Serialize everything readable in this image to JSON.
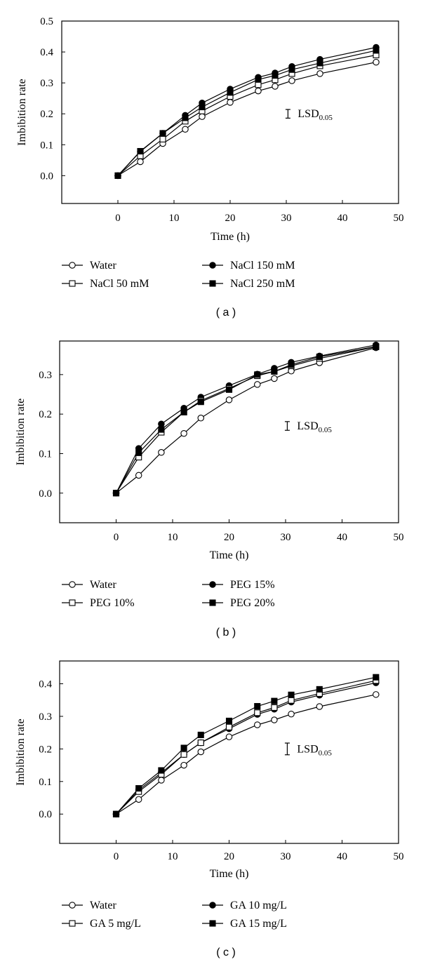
{
  "chart_data": [
    {
      "type": "line",
      "panel_label": "( a )",
      "xlabel": "Time (h)",
      "ylabel": "Imbibition rate",
      "xlim": [
        -10,
        50
      ],
      "ylim": [
        -0.09,
        0.5
      ],
      "xticks": [
        "0",
        "10",
        "20",
        "30",
        "40",
        "50"
      ],
      "yticks": [
        "0.0",
        "0.1",
        "0.2",
        "0.3",
        "0.4",
        "0.5"
      ],
      "x": [
        0,
        4,
        8,
        12,
        15,
        20,
        25,
        28,
        31,
        36,
        46
      ],
      "lsd": {
        "label": "LSD",
        "subscript": "0.05",
        "x": 30.3,
        "y": 0.2,
        "half_range": 0.014
      },
      "series": [
        {
          "name": "Water",
          "marker": "circle-open",
          "values": [
            0,
            0.045,
            0.104,
            0.15,
            0.191,
            0.237,
            0.274,
            0.289,
            0.307,
            0.33,
            0.367
          ]
        },
        {
          "name": "NaCl 150 mM",
          "marker": "circle-filled",
          "values": [
            0,
            0.078,
            0.137,
            0.195,
            0.235,
            0.28,
            0.318,
            0.332,
            0.353,
            0.376,
            0.415
          ]
        },
        {
          "name": "NaCl 50 mM",
          "marker": "square-open",
          "values": [
            0,
            0.064,
            0.118,
            0.176,
            0.209,
            0.256,
            0.294,
            0.31,
            0.33,
            0.355,
            0.39
          ]
        },
        {
          "name": "NaCl 250 mM",
          "marker": "square-filled",
          "values": [
            0,
            0.079,
            0.137,
            0.187,
            0.222,
            0.269,
            0.311,
            0.324,
            0.343,
            0.364,
            0.405
          ]
        }
      ]
    },
    {
      "type": "line",
      "panel_label": "( b )",
      "xlabel": "Time (h)",
      "ylabel": "Imbibition rate",
      "xlim": [
        -10,
        50
      ],
      "ylim": [
        -0.075,
        0.385
      ],
      "xticks": [
        "0",
        "10",
        "20",
        "30",
        "40",
        "50"
      ],
      "yticks": [
        "0.0",
        "0.1",
        "0.2",
        "0.3"
      ],
      "x": [
        0,
        4,
        8,
        12,
        15,
        20,
        25,
        28,
        31,
        36,
        46
      ],
      "lsd": {
        "label": "LSD",
        "subscript": "0.05",
        "x": 30.3,
        "y": 0.17,
        "half_range": 0.011
      },
      "series": [
        {
          "name": "Water",
          "marker": "circle-open",
          "values": [
            0,
            0.045,
            0.103,
            0.151,
            0.19,
            0.236,
            0.275,
            0.29,
            0.309,
            0.33,
            0.368
          ]
        },
        {
          "name": "PEG 15%",
          "marker": "circle-filled",
          "values": [
            0,
            0.113,
            0.175,
            0.215,
            0.243,
            0.272,
            0.301,
            0.316,
            0.331,
            0.347,
            0.375
          ]
        },
        {
          "name": "PEG 10%",
          "marker": "square-open",
          "values": [
            0,
            0.091,
            0.154,
            0.205,
            0.234,
            0.265,
            0.297,
            0.308,
            0.322,
            0.341,
            0.37
          ]
        },
        {
          "name": "PEG 20%",
          "marker": "square-filled",
          "values": [
            0,
            0.102,
            0.161,
            0.205,
            0.231,
            0.262,
            0.3,
            0.308,
            0.325,
            0.345,
            0.371
          ]
        }
      ]
    },
    {
      "type": "line",
      "panel_label": "( c )",
      "xlabel": "Time (h)",
      "ylabel": "Imbibition rate",
      "xlim": [
        -10,
        50
      ],
      "ylim": [
        -0.09,
        0.47
      ],
      "xticks": [
        "0",
        "10",
        "20",
        "30",
        "40",
        "50"
      ],
      "yticks": [
        "0.0",
        "0.1",
        "0.2",
        "0.3",
        "0.4"
      ],
      "x": [
        0,
        4,
        8,
        12,
        15,
        20,
        25,
        28,
        31,
        36,
        46
      ],
      "lsd": {
        "label": "LSD",
        "subscript": "0.05",
        "x": 30.3,
        "y": 0.2,
        "half_range": 0.018
      },
      "series": [
        {
          "name": "Water",
          "marker": "circle-open",
          "values": [
            0,
            0.045,
            0.104,
            0.15,
            0.191,
            0.237,
            0.274,
            0.289,
            0.307,
            0.33,
            0.367
          ]
        },
        {
          "name": "GA 10 mg/L",
          "marker": "circle-filled",
          "values": [
            0,
            0.074,
            0.127,
            0.183,
            0.219,
            0.262,
            0.306,
            0.322,
            0.344,
            0.365,
            0.403
          ]
        },
        {
          "name": "GA 5 mg/L",
          "marker": "square-open",
          "values": [
            0,
            0.069,
            0.122,
            0.183,
            0.219,
            0.267,
            0.311,
            0.327,
            0.349,
            0.37,
            0.41
          ]
        },
        {
          "name": "GA 15 mg/L",
          "marker": "square-filled",
          "values": [
            0,
            0.079,
            0.134,
            0.203,
            0.243,
            0.286,
            0.331,
            0.347,
            0.366,
            0.383,
            0.42
          ]
        }
      ]
    }
  ]
}
